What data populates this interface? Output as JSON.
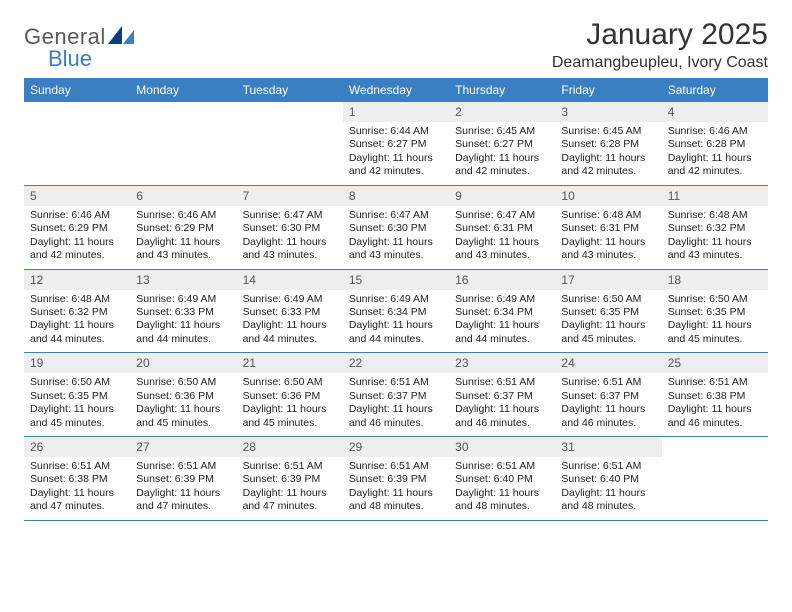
{
  "brand": {
    "text1": "General",
    "text2": "Blue",
    "color_gray": "#595959",
    "color_blue": "#3a7fc1"
  },
  "title": "January 2025",
  "location": "Deamangbeupleu, Ivory Coast",
  "colors": {
    "header_bg": "#3a7fc1",
    "header_fg": "#ffffff",
    "daynum_bg": "#eeeeee",
    "rule": "#3a7fc1",
    "page_bg": "#ffffff",
    "text": "#222222"
  },
  "fonts": {
    "title_size": 30,
    "location_size": 16,
    "dow_size": 12,
    "daynum_size": 12,
    "body_size": 10.5
  },
  "days_of_week": [
    "Sunday",
    "Monday",
    "Tuesday",
    "Wednesday",
    "Thursday",
    "Friday",
    "Saturday"
  ],
  "weeks": [
    [
      {
        "n": "",
        "lines": []
      },
      {
        "n": "",
        "lines": []
      },
      {
        "n": "",
        "lines": []
      },
      {
        "n": "1",
        "lines": [
          "Sunrise: 6:44 AM",
          "Sunset: 6:27 PM",
          "Daylight: 11 hours and 42 minutes."
        ]
      },
      {
        "n": "2",
        "lines": [
          "Sunrise: 6:45 AM",
          "Sunset: 6:27 PM",
          "Daylight: 11 hours and 42 minutes."
        ]
      },
      {
        "n": "3",
        "lines": [
          "Sunrise: 6:45 AM",
          "Sunset: 6:28 PM",
          "Daylight: 11 hours and 42 minutes."
        ]
      },
      {
        "n": "4",
        "lines": [
          "Sunrise: 6:46 AM",
          "Sunset: 6:28 PM",
          "Daylight: 11 hours and 42 minutes."
        ]
      }
    ],
    [
      {
        "n": "5",
        "lines": [
          "Sunrise: 6:46 AM",
          "Sunset: 6:29 PM",
          "Daylight: 11 hours and 42 minutes."
        ]
      },
      {
        "n": "6",
        "lines": [
          "Sunrise: 6:46 AM",
          "Sunset: 6:29 PM",
          "Daylight: 11 hours and 43 minutes."
        ]
      },
      {
        "n": "7",
        "lines": [
          "Sunrise: 6:47 AM",
          "Sunset: 6:30 PM",
          "Daylight: 11 hours and 43 minutes."
        ]
      },
      {
        "n": "8",
        "lines": [
          "Sunrise: 6:47 AM",
          "Sunset: 6:30 PM",
          "Daylight: 11 hours and 43 minutes."
        ]
      },
      {
        "n": "9",
        "lines": [
          "Sunrise: 6:47 AM",
          "Sunset: 6:31 PM",
          "Daylight: 11 hours and 43 minutes."
        ]
      },
      {
        "n": "10",
        "lines": [
          "Sunrise: 6:48 AM",
          "Sunset: 6:31 PM",
          "Daylight: 11 hours and 43 minutes."
        ]
      },
      {
        "n": "11",
        "lines": [
          "Sunrise: 6:48 AM",
          "Sunset: 6:32 PM",
          "Daylight: 11 hours and 43 minutes."
        ]
      }
    ],
    [
      {
        "n": "12",
        "lines": [
          "Sunrise: 6:48 AM",
          "Sunset: 6:32 PM",
          "Daylight: 11 hours and 44 minutes."
        ]
      },
      {
        "n": "13",
        "lines": [
          "Sunrise: 6:49 AM",
          "Sunset: 6:33 PM",
          "Daylight: 11 hours and 44 minutes."
        ]
      },
      {
        "n": "14",
        "lines": [
          "Sunrise: 6:49 AM",
          "Sunset: 6:33 PM",
          "Daylight: 11 hours and 44 minutes."
        ]
      },
      {
        "n": "15",
        "lines": [
          "Sunrise: 6:49 AM",
          "Sunset: 6:34 PM",
          "Daylight: 11 hours and 44 minutes."
        ]
      },
      {
        "n": "16",
        "lines": [
          "Sunrise: 6:49 AM",
          "Sunset: 6:34 PM",
          "Daylight: 11 hours and 44 minutes."
        ]
      },
      {
        "n": "17",
        "lines": [
          "Sunrise: 6:50 AM",
          "Sunset: 6:35 PM",
          "Daylight: 11 hours and 45 minutes."
        ]
      },
      {
        "n": "18",
        "lines": [
          "Sunrise: 6:50 AM",
          "Sunset: 6:35 PM",
          "Daylight: 11 hours and 45 minutes."
        ]
      }
    ],
    [
      {
        "n": "19",
        "lines": [
          "Sunrise: 6:50 AM",
          "Sunset: 6:35 PM",
          "Daylight: 11 hours and 45 minutes."
        ]
      },
      {
        "n": "20",
        "lines": [
          "Sunrise: 6:50 AM",
          "Sunset: 6:36 PM",
          "Daylight: 11 hours and 45 minutes."
        ]
      },
      {
        "n": "21",
        "lines": [
          "Sunrise: 6:50 AM",
          "Sunset: 6:36 PM",
          "Daylight: 11 hours and 45 minutes."
        ]
      },
      {
        "n": "22",
        "lines": [
          "Sunrise: 6:51 AM",
          "Sunset: 6:37 PM",
          "Daylight: 11 hours and 46 minutes."
        ]
      },
      {
        "n": "23",
        "lines": [
          "Sunrise: 6:51 AM",
          "Sunset: 6:37 PM",
          "Daylight: 11 hours and 46 minutes."
        ]
      },
      {
        "n": "24",
        "lines": [
          "Sunrise: 6:51 AM",
          "Sunset: 6:37 PM",
          "Daylight: 11 hours and 46 minutes."
        ]
      },
      {
        "n": "25",
        "lines": [
          "Sunrise: 6:51 AM",
          "Sunset: 6:38 PM",
          "Daylight: 11 hours and 46 minutes."
        ]
      }
    ],
    [
      {
        "n": "26",
        "lines": [
          "Sunrise: 6:51 AM",
          "Sunset: 6:38 PM",
          "Daylight: 11 hours and 47 minutes."
        ]
      },
      {
        "n": "27",
        "lines": [
          "Sunrise: 6:51 AM",
          "Sunset: 6:39 PM",
          "Daylight: 11 hours and 47 minutes."
        ]
      },
      {
        "n": "28",
        "lines": [
          "Sunrise: 6:51 AM",
          "Sunset: 6:39 PM",
          "Daylight: 11 hours and 47 minutes."
        ]
      },
      {
        "n": "29",
        "lines": [
          "Sunrise: 6:51 AM",
          "Sunset: 6:39 PM",
          "Daylight: 11 hours and 48 minutes."
        ]
      },
      {
        "n": "30",
        "lines": [
          "Sunrise: 6:51 AM",
          "Sunset: 6:40 PM",
          "Daylight: 11 hours and 48 minutes."
        ]
      },
      {
        "n": "31",
        "lines": [
          "Sunrise: 6:51 AM",
          "Sunset: 6:40 PM",
          "Daylight: 11 hours and 48 minutes."
        ]
      },
      {
        "n": "",
        "lines": []
      }
    ]
  ]
}
